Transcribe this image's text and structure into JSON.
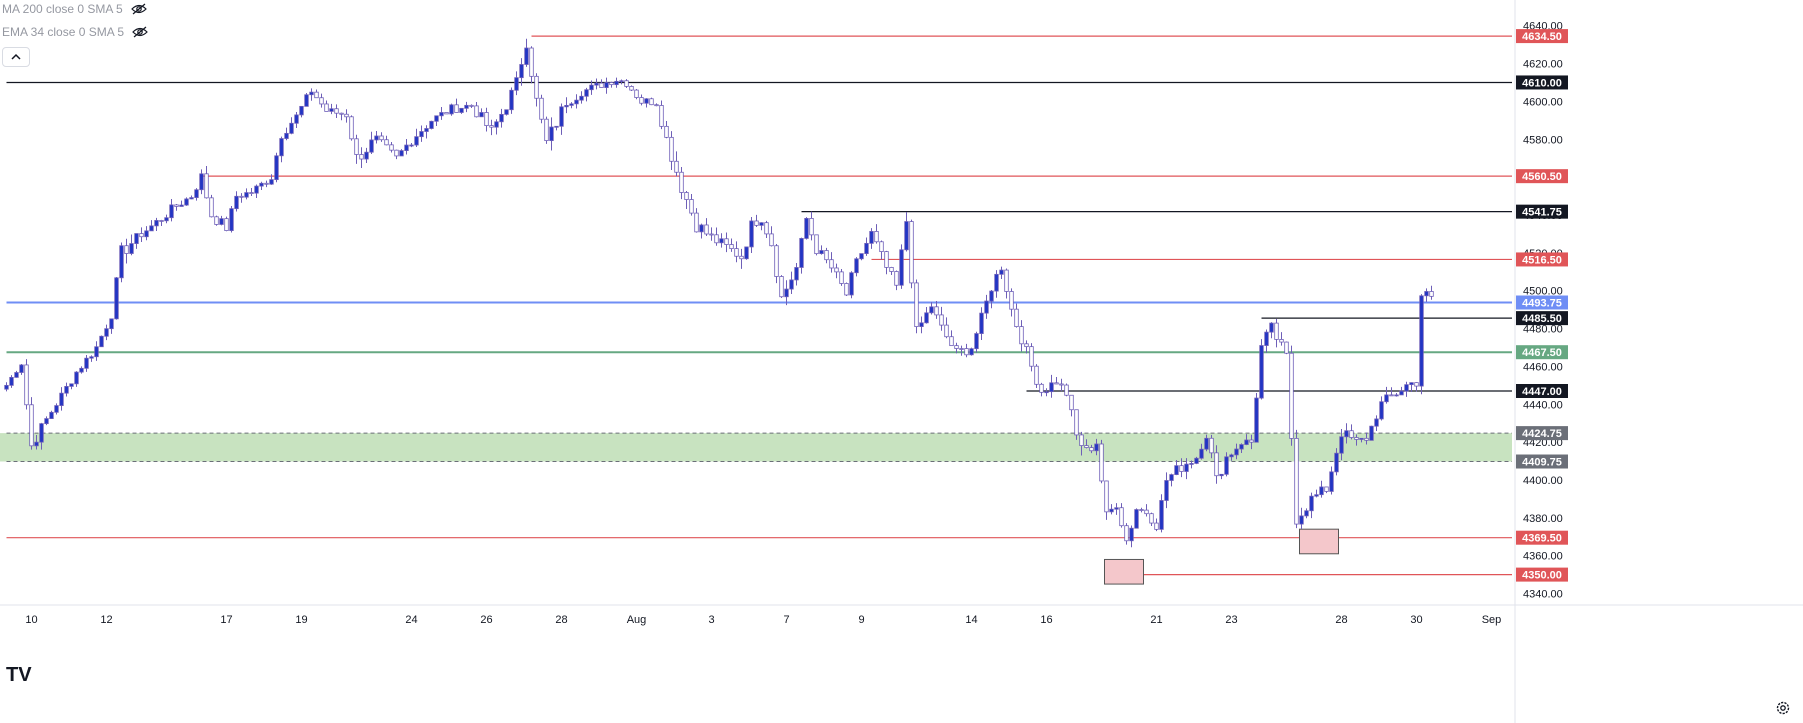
{
  "indicators": [
    {
      "label": "MA 200 close 0 SMA 5",
      "icon": "eye-crossed-icon"
    },
    {
      "label": "EMA 34 close 0 SMA 5",
      "icon": "eye-crossed-icon"
    }
  ],
  "collapse_icon": "chevron-up-icon",
  "logo": "TV",
  "settings_icon": "gear-icon",
  "colors": {
    "bull_body": "#2235c4",
    "bear_body": "#ffffff",
    "candle_outline": "#6e5fb8",
    "red_level": "#e05558",
    "black_level": "#131722",
    "blue_level": "#6f8ef5",
    "green_level": "#66a882",
    "zone_fill": "#c8e3c0",
    "highlight_box": "#f4c7cb"
  },
  "chart_data": {
    "type": "candlestick",
    "y_axis": {
      "min": 4335,
      "max": 4643,
      "ticks": [
        4340,
        4360,
        4380,
        4400,
        4420,
        4440,
        4460,
        4480,
        4500,
        4520,
        4540,
        4560,
        4580,
        4600,
        4620,
        4640
      ],
      "tick_labels": [
        "4340.00",
        "4360.00",
        "4380.00",
        "4400.00",
        "4420.00",
        "4440.00",
        "4460.00",
        "4480.00",
        "4500.00",
        "4520.00",
        "4540.00",
        "4560.00",
        "4580.00",
        "4600.00",
        "4620.00",
        "4640.00"
      ]
    },
    "x_axis": {
      "tick_labels": [
        "10",
        "12",
        "17",
        "19",
        "24",
        "26",
        "28",
        "Aug",
        "3",
        "7",
        "9",
        "14",
        "16",
        "21",
        "23",
        "28",
        "30",
        "Sep"
      ],
      "tick_bar_index": [
        5,
        20,
        44,
        59,
        81,
        96,
        111,
        126,
        141,
        156,
        171,
        193,
        208,
        230,
        245,
        267,
        282,
        297
      ]
    },
    "levels": [
      {
        "price": 4634.5,
        "label": "4634.50",
        "style": "red",
        "start_bar": 105
      },
      {
        "price": 4610.0,
        "label": "4610.00",
        "style": "black",
        "start_bar": 0
      },
      {
        "price": 4560.5,
        "label": "4560.50",
        "style": "red",
        "start_bar": 39
      },
      {
        "price": 4541.75,
        "label": "4541.75",
        "style": "black",
        "start_bar": 159
      },
      {
        "price": 4516.5,
        "label": "4516.50",
        "style": "red",
        "start_bar": 173
      },
      {
        "price": 4493.75,
        "label": "4493.75",
        "style": "blue",
        "start_bar": 0
      },
      {
        "price": 4485.5,
        "label": "4485.50",
        "style": "black",
        "start_bar": 251
      },
      {
        "price": 4467.5,
        "label": "4467.50",
        "style": "green",
        "start_bar": 0
      },
      {
        "price": 4447.0,
        "label": "4447.00",
        "style": "black",
        "start_bar": 204
      },
      {
        "price": 4424.75,
        "label": "4424.75",
        "style": "zone",
        "start_bar": 0
      },
      {
        "price": 4409.75,
        "label": "4409.75",
        "style": "zone",
        "start_bar": 0
      },
      {
        "price": 4369.5,
        "label": "4369.50",
        "style": "red",
        "start_bar": 0
      },
      {
        "price": 4350.0,
        "label": "4350.00",
        "style": "red",
        "start_bar": 224
      }
    ],
    "zone": {
      "from": 4409.75,
      "to": 4424.75
    },
    "highlight_boxes": [
      {
        "start_bar": 220,
        "end_bar": 227,
        "low": 4345,
        "high": 4358
      },
      {
        "start_bar": 259,
        "end_bar": 266,
        "low": 4361,
        "high": 4374
      }
    ],
    "path": [
      [
        0,
        4450,
        2
      ],
      [
        3,
        4462,
        3
      ],
      [
        5,
        4418,
        4
      ],
      [
        8,
        4432,
        3
      ],
      [
        14,
        4457,
        3
      ],
      [
        18,
        4470,
        4
      ],
      [
        21,
        4488,
        4
      ],
      [
        23,
        4520,
        5
      ],
      [
        26,
        4528,
        3
      ],
      [
        30,
        4536,
        4
      ],
      [
        33,
        4543,
        3
      ],
      [
        37,
        4550,
        3
      ],
      [
        39,
        4560,
        4
      ],
      [
        41,
        4540,
        4
      ],
      [
        44,
        4533,
        3
      ],
      [
        46,
        4550,
        3
      ],
      [
        49,
        4552,
        3
      ],
      [
        53,
        4560,
        3
      ],
      [
        55,
        4583,
        4
      ],
      [
        58,
        4592,
        3
      ],
      [
        61,
        4606,
        4
      ],
      [
        64,
        4595,
        3
      ],
      [
        68,
        4593,
        3
      ],
      [
        70,
        4570,
        5
      ],
      [
        74,
        4580,
        3
      ],
      [
        78,
        4570,
        3
      ],
      [
        81,
        4580,
        4
      ],
      [
        85,
        4590,
        3
      ],
      [
        89,
        4596,
        3
      ],
      [
        93,
        4598,
        4
      ],
      [
        97,
        4584,
        4
      ],
      [
        100,
        4598,
        4
      ],
      [
        102,
        4610,
        4
      ],
      [
        104,
        4632,
        5
      ],
      [
        106,
        4600,
        5
      ],
      [
        108,
        4578,
        5
      ],
      [
        112,
        4600,
        4
      ],
      [
        115,
        4605,
        3
      ],
      [
        118,
        4608,
        3
      ],
      [
        122,
        4612,
        4
      ],
      [
        124,
        4610,
        3
      ],
      [
        127,
        4600,
        3
      ],
      [
        130,
        4600,
        4
      ],
      [
        132,
        4580,
        5
      ],
      [
        135,
        4555,
        5
      ],
      [
        138,
        4535,
        5
      ],
      [
        141,
        4528,
        4
      ],
      [
        144,
        4523,
        4
      ],
      [
        147,
        4518,
        5
      ],
      [
        149,
        4535,
        3
      ],
      [
        151,
        4538,
        3
      ],
      [
        153,
        4525,
        4
      ],
      [
        155,
        4496,
        5
      ],
      [
        158,
        4512,
        4
      ],
      [
        160,
        4538,
        4
      ],
      [
        162,
        4522,
        4
      ],
      [
        165,
        4512,
        4
      ],
      [
        168,
        4498,
        4
      ],
      [
        170,
        4515,
        3
      ],
      [
        173,
        4530,
        4
      ],
      [
        176,
        4512,
        4
      ],
      [
        178,
        4502,
        4
      ],
      [
        180,
        4537,
        5
      ],
      [
        182,
        4478,
        4
      ],
      [
        185,
        4492,
        3
      ],
      [
        187,
        4480,
        4
      ],
      [
        190,
        4467,
        4
      ],
      [
        193,
        4470,
        3
      ],
      [
        195,
        4485,
        4
      ],
      [
        197,
        4502,
        4
      ],
      [
        199,
        4513,
        4
      ],
      [
        201,
        4490,
        5
      ],
      [
        203,
        4475,
        4
      ],
      [
        205,
        4460,
        4
      ],
      [
        207,
        4447,
        4
      ],
      [
        210,
        4452,
        3
      ],
      [
        212,
        4446,
        4
      ],
      [
        214,
        4423,
        5
      ],
      [
        216,
        4415,
        4
      ],
      [
        218,
        4420,
        4
      ],
      [
        220,
        4380,
        5
      ],
      [
        222,
        4388,
        4
      ],
      [
        224,
        4368,
        5
      ],
      [
        226,
        4385,
        4
      ],
      [
        228,
        4383,
        3
      ],
      [
        230,
        4376,
        3
      ],
      [
        232,
        4400,
        4
      ],
      [
        234,
        4405,
        4
      ],
      [
        236,
        4409,
        4
      ],
      [
        238,
        4412,
        3
      ],
      [
        240,
        4425,
        5
      ],
      [
        242,
        4400,
        4
      ],
      [
        244,
        4412,
        4
      ],
      [
        247,
        4420,
        3
      ],
      [
        249,
        4420,
        4
      ],
      [
        251,
        4470,
        5
      ],
      [
        253,
        4480,
        4
      ],
      [
        256,
        4465,
        4
      ],
      [
        258,
        4380,
        5
      ],
      [
        261,
        4390,
        4
      ],
      [
        264,
        4395,
        3
      ],
      [
        267,
        4425,
        4
      ],
      [
        270,
        4420,
        3
      ],
      [
        272,
        4422,
        3
      ],
      [
        275,
        4440,
        4
      ],
      [
        277,
        4444,
        4
      ],
      [
        280,
        4450,
        4
      ],
      [
        282,
        4452,
        4
      ],
      [
        283,
        4498,
        4
      ],
      [
        285,
        4497,
        3
      ]
    ],
    "n_bars": 298
  }
}
